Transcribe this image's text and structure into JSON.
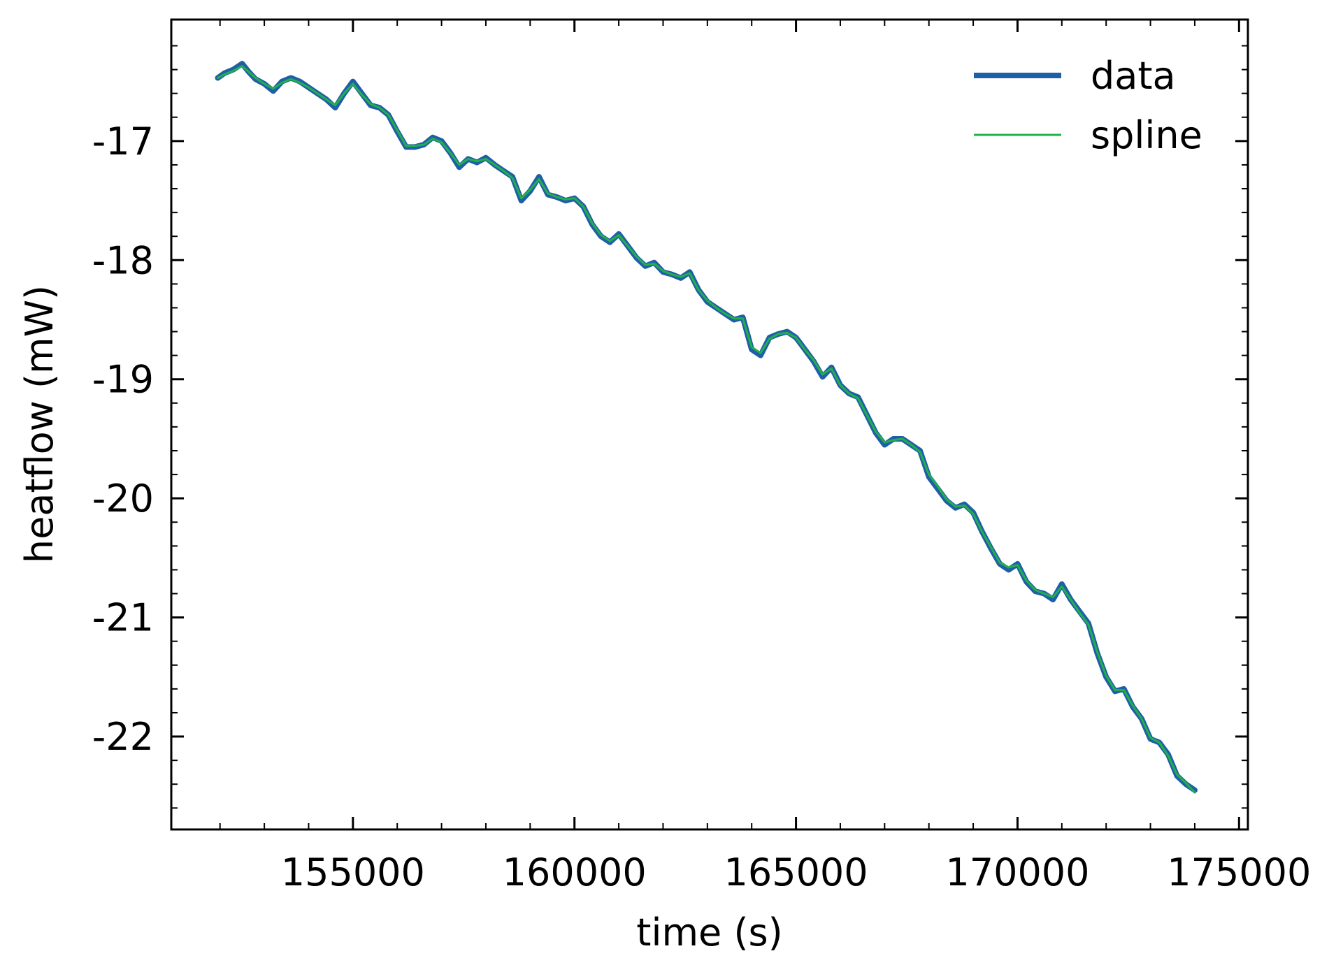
{
  "chart_data": {
    "type": "line",
    "title": "",
    "xlabel": "time (s)",
    "ylabel": "heatflow (mW)",
    "xlim": [
      150900,
      175200
    ],
    "ylim": [
      -22.78,
      -15.98
    ],
    "xticks": [
      155000,
      160000,
      165000,
      170000,
      175000
    ],
    "xtick_labels": [
      "155000",
      "160000",
      "165000",
      "170000",
      "175000"
    ],
    "yticks": [
      -17,
      -18,
      -19,
      -20,
      -21,
      -22
    ],
    "ytick_labels": [
      "-17",
      "-18",
      "-19",
      "-20",
      "-21",
      "-22"
    ],
    "grid": false,
    "legend_position": "top-right",
    "series": [
      {
        "name": "data",
        "color": "#1f5fa8",
        "x": [
          151950,
          152100,
          152300,
          152500,
          152650,
          152800,
          153000,
          153200,
          153400,
          153600,
          153800,
          154000,
          154200,
          154400,
          154600,
          154800,
          155000,
          155200,
          155400,
          155600,
          155800,
          156000,
          156200,
          156400,
          156600,
          156800,
          157000,
          157200,
          157400,
          157600,
          157800,
          158000,
          158200,
          158400,
          158600,
          158800,
          159000,
          159200,
          159400,
          159600,
          159800,
          160000,
          160200,
          160400,
          160600,
          160800,
          161000,
          161200,
          161400,
          161600,
          161800,
          162000,
          162200,
          162400,
          162600,
          162800,
          163000,
          163200,
          163400,
          163600,
          163800,
          164000,
          164200,
          164400,
          164600,
          164800,
          165000,
          165200,
          165400,
          165600,
          165800,
          166000,
          166200,
          166400,
          166600,
          166800,
          167000,
          167200,
          167400,
          167600,
          167800,
          168000,
          168200,
          168400,
          168600,
          168800,
          169000,
          169200,
          169400,
          169600,
          169800,
          170000,
          170200,
          170400,
          170600,
          170800,
          171000,
          171200,
          171400,
          171600,
          171800,
          172000,
          172200,
          172400,
          172600,
          172800,
          173000,
          173200,
          173400,
          173600,
          173800,
          174000
        ],
        "y": [
          -16.47,
          -16.43,
          -16.4,
          -16.35,
          -16.42,
          -16.48,
          -16.52,
          -16.58,
          -16.5,
          -16.47,
          -16.5,
          -16.55,
          -16.6,
          -16.65,
          -16.72,
          -16.6,
          -16.5,
          -16.6,
          -16.7,
          -16.72,
          -16.78,
          -16.92,
          -17.05,
          -17.05,
          -17.03,
          -16.97,
          -17.0,
          -17.1,
          -17.22,
          -17.15,
          -17.18,
          -17.14,
          -17.2,
          -17.25,
          -17.3,
          -17.5,
          -17.42,
          -17.3,
          -17.45,
          -17.47,
          -17.5,
          -17.48,
          -17.55,
          -17.7,
          -17.8,
          -17.85,
          -17.78,
          -17.88,
          -17.98,
          -18.05,
          -18.02,
          -18.1,
          -18.12,
          -18.15,
          -18.1,
          -18.25,
          -18.35,
          -18.4,
          -18.45,
          -18.5,
          -18.48,
          -18.75,
          -18.8,
          -18.65,
          -18.62,
          -18.6,
          -18.65,
          -18.75,
          -18.85,
          -18.98,
          -18.9,
          -19.05,
          -19.12,
          -19.15,
          -19.3,
          -19.45,
          -19.55,
          -19.5,
          -19.5,
          -19.55,
          -19.6,
          -19.82,
          -19.92,
          -20.02,
          -20.08,
          -20.05,
          -20.12,
          -20.28,
          -20.42,
          -20.55,
          -20.6,
          -20.55,
          -20.7,
          -20.78,
          -20.8,
          -20.85,
          -20.72,
          -20.85,
          -20.95,
          -21.05,
          -21.3,
          -21.5,
          -21.62,
          -21.6,
          -21.75,
          -21.85,
          -22.02,
          -22.05,
          -22.15,
          -22.33,
          -22.4,
          -22.45
        ]
      },
      {
        "name": "spline",
        "color": "#22b04b",
        "x": [
          151950,
          152100,
          152300,
          152500,
          152650,
          152800,
          153000,
          153200,
          153400,
          153600,
          153800,
          154000,
          154200,
          154400,
          154600,
          154800,
          155000,
          155200,
          155400,
          155600,
          155800,
          156000,
          156200,
          156400,
          156600,
          156800,
          157000,
          157200,
          157400,
          157600,
          157800,
          158000,
          158200,
          158400,
          158600,
          158800,
          159000,
          159200,
          159400,
          159600,
          159800,
          160000,
          160200,
          160400,
          160600,
          160800,
          161000,
          161200,
          161400,
          161600,
          161800,
          162000,
          162200,
          162400,
          162600,
          162800,
          163000,
          163200,
          163400,
          163600,
          163800,
          164000,
          164200,
          164400,
          164600,
          164800,
          165000,
          165200,
          165400,
          165600,
          165800,
          166000,
          166200,
          166400,
          166600,
          166800,
          167000,
          167200,
          167400,
          167600,
          167800,
          168000,
          168200,
          168400,
          168600,
          168800,
          169000,
          169200,
          169400,
          169600,
          169800,
          170000,
          170200,
          170400,
          170600,
          170800,
          171000,
          171200,
          171400,
          171600,
          171800,
          172000,
          172200,
          172400,
          172600,
          172800,
          173000,
          173200,
          173400,
          173600,
          173800,
          174000
        ],
        "y": [
          -16.47,
          -16.44,
          -16.41,
          -16.37,
          -16.42,
          -16.47,
          -16.52,
          -16.56,
          -16.51,
          -16.48,
          -16.51,
          -16.55,
          -16.6,
          -16.65,
          -16.7,
          -16.6,
          -16.52,
          -16.61,
          -16.69,
          -16.72,
          -16.78,
          -16.91,
          -17.04,
          -17.04,
          -17.03,
          -16.98,
          -17.01,
          -17.1,
          -17.2,
          -17.15,
          -17.17,
          -17.15,
          -17.2,
          -17.25,
          -17.31,
          -17.48,
          -17.41,
          -17.32,
          -17.44,
          -17.47,
          -17.49,
          -17.48,
          -17.55,
          -17.69,
          -17.79,
          -17.84,
          -17.79,
          -17.88,
          -17.97,
          -18.04,
          -18.03,
          -18.09,
          -18.12,
          -18.14,
          -18.11,
          -18.25,
          -18.34,
          -18.4,
          -18.45,
          -18.49,
          -18.49,
          -18.73,
          -18.78,
          -18.66,
          -18.62,
          -18.61,
          -18.65,
          -18.75,
          -18.84,
          -18.96,
          -18.91,
          -19.05,
          -19.12,
          -19.16,
          -19.3,
          -19.44,
          -19.53,
          -19.51,
          -19.5,
          -19.55,
          -19.61,
          -19.8,
          -19.9,
          -20.01,
          -20.07,
          -20.06,
          -20.13,
          -20.28,
          -20.41,
          -20.54,
          -20.58,
          -20.56,
          -20.69,
          -20.77,
          -20.8,
          -20.83,
          -20.74,
          -20.85,
          -20.96,
          -21.06,
          -21.29,
          -21.49,
          -21.61,
          -21.61,
          -21.74,
          -21.85,
          -22.01,
          -22.05,
          -22.16,
          -22.32,
          -22.39,
          -22.47
        ]
      }
    ]
  }
}
